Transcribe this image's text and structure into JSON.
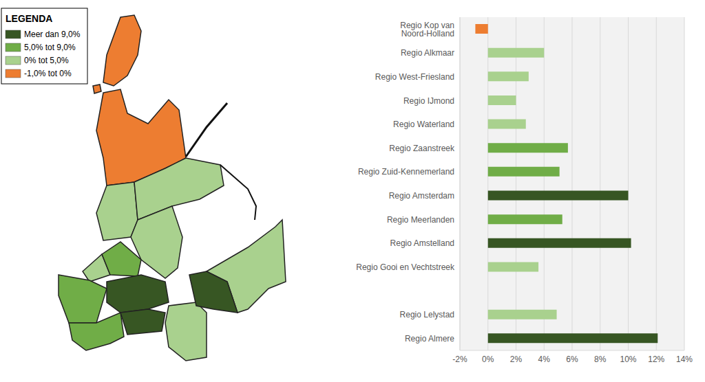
{
  "chart_data": {
    "type": "bar",
    "orientation": "horizontal",
    "categories": [
      "Regio Kop van Noord-Holland",
      "Regio Alkmaar",
      "Regio West-Friesland",
      "Regio IJmond",
      "Regio Waterland",
      "Regio Zaanstreek",
      "Regio Zuid-Kennemerland",
      "Regio Amsterdam",
      "Regio Meerlanden",
      "Regio Amstelland",
      "Regio Gooi en Vechtstreek",
      null,
      "Regio Lelystad",
      "Regio Almere"
    ],
    "values": [
      -0.9,
      4.0,
      2.9,
      2.0,
      2.7,
      5.7,
      5.1,
      10.0,
      5.3,
      10.2,
      3.6,
      null,
      4.9,
      12.1
    ],
    "colors": [
      "#ed7d31",
      "#a9d18e",
      "#a9d18e",
      "#a9d18e",
      "#a9d18e",
      "#70ad47",
      "#70ad47",
      "#375623",
      "#70ad47",
      "#375623",
      "#a9d18e",
      null,
      "#a9d18e",
      "#375623"
    ],
    "xlim": [
      -2,
      14
    ],
    "xticks": [
      {
        "value": -2,
        "label": "-2%"
      },
      {
        "value": 0,
        "label": "0%"
      },
      {
        "value": 2,
        "label": "2%"
      },
      {
        "value": 4,
        "label": "4%"
      },
      {
        "value": 6,
        "label": "6%"
      },
      {
        "value": 8,
        "label": "8%"
      },
      {
        "value": 10,
        "label": "10%"
      },
      {
        "value": 12,
        "label": "12%"
      },
      {
        "value": 14,
        "label": "14%"
      }
    ],
    "grid": true
  },
  "map": {
    "legend_title": "LEGENDA",
    "classes": [
      {
        "label": "Meer dan 9,0%",
        "color": "#375623"
      },
      {
        "label": "5,0% tot 9,0%",
        "color": "#70ad47"
      },
      {
        "label": "0% tot 5,0%",
        "color": "#a9d18e"
      },
      {
        "label": "-1,0% tot 0%",
        "color": "#ed7d31"
      }
    ]
  }
}
